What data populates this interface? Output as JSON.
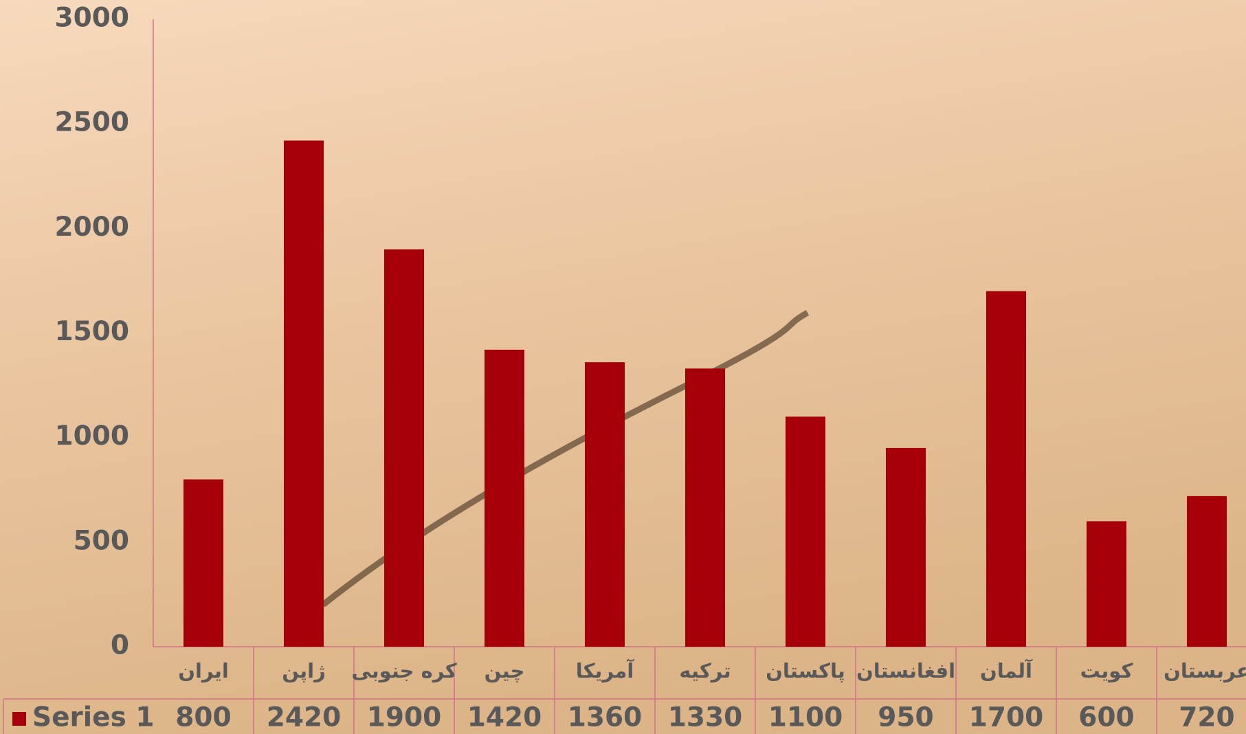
{
  "chart_data": {
    "type": "bar",
    "categories": [
      "ایران",
      "ژاپن",
      "کره جنوبی",
      "چین",
      "آمریکا",
      "ترکیه",
      "پاکستان",
      "افغانستان",
      "آلمان",
      "کویت",
      "عربستان"
    ],
    "series": [
      {
        "name": "Series 1",
        "color": "#a50009",
        "values": [
          800,
          2420,
          1900,
          1420,
          1360,
          1330,
          1100,
          950,
          1700,
          600,
          720
        ]
      }
    ],
    "ylim": [
      0,
      3000
    ],
    "yticks": [
      0,
      500,
      1000,
      1500,
      2000,
      2500,
      3000
    ],
    "grid": false,
    "data_table": true
  }
}
